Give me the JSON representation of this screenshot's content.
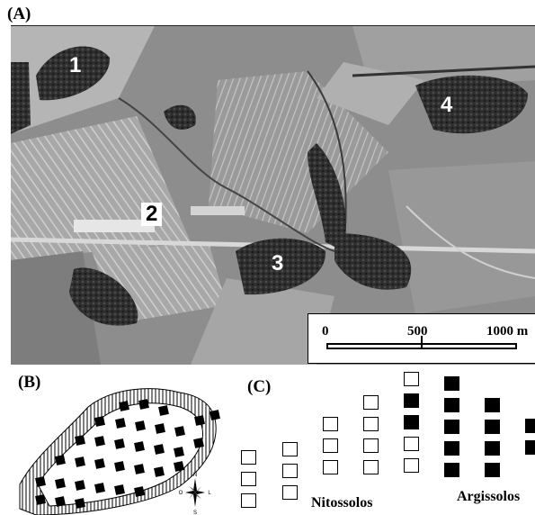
{
  "panel_a": {
    "label": "(A)",
    "sites": [
      "1",
      "2",
      "3",
      "4"
    ],
    "scale": {
      "zero": "0",
      "mid": "500",
      "end": "1000 m"
    }
  },
  "panel_b": {
    "label": "(B)"
  },
  "compass": {
    "n": "N",
    "s": "S",
    "o": "O",
    "l": "L"
  },
  "panel_c": {
    "label": "(C)",
    "group_1": "Nitossolos",
    "group_2": "Argissolos",
    "columns": [
      {
        "cells": [
          "empty",
          "empty",
          "empty"
        ]
      },
      {
        "cells": [
          "empty",
          "empty",
          "empty"
        ]
      },
      {
        "cells": [
          "empty",
          "empty",
          "empty"
        ]
      },
      {
        "cells": [
          "empty",
          "empty",
          "empty",
          "empty"
        ]
      },
      {
        "cells": [
          "empty",
          "filled",
          "filled",
          "empty",
          "empty"
        ]
      },
      {
        "cells": [
          "filled",
          "filled",
          "filled",
          "filled",
          "filled"
        ]
      },
      {
        "cells": [
          "filled",
          "filled",
          "filled",
          "filled"
        ]
      },
      {
        "cells": [
          "filled",
          "filled"
        ]
      }
    ]
  }
}
